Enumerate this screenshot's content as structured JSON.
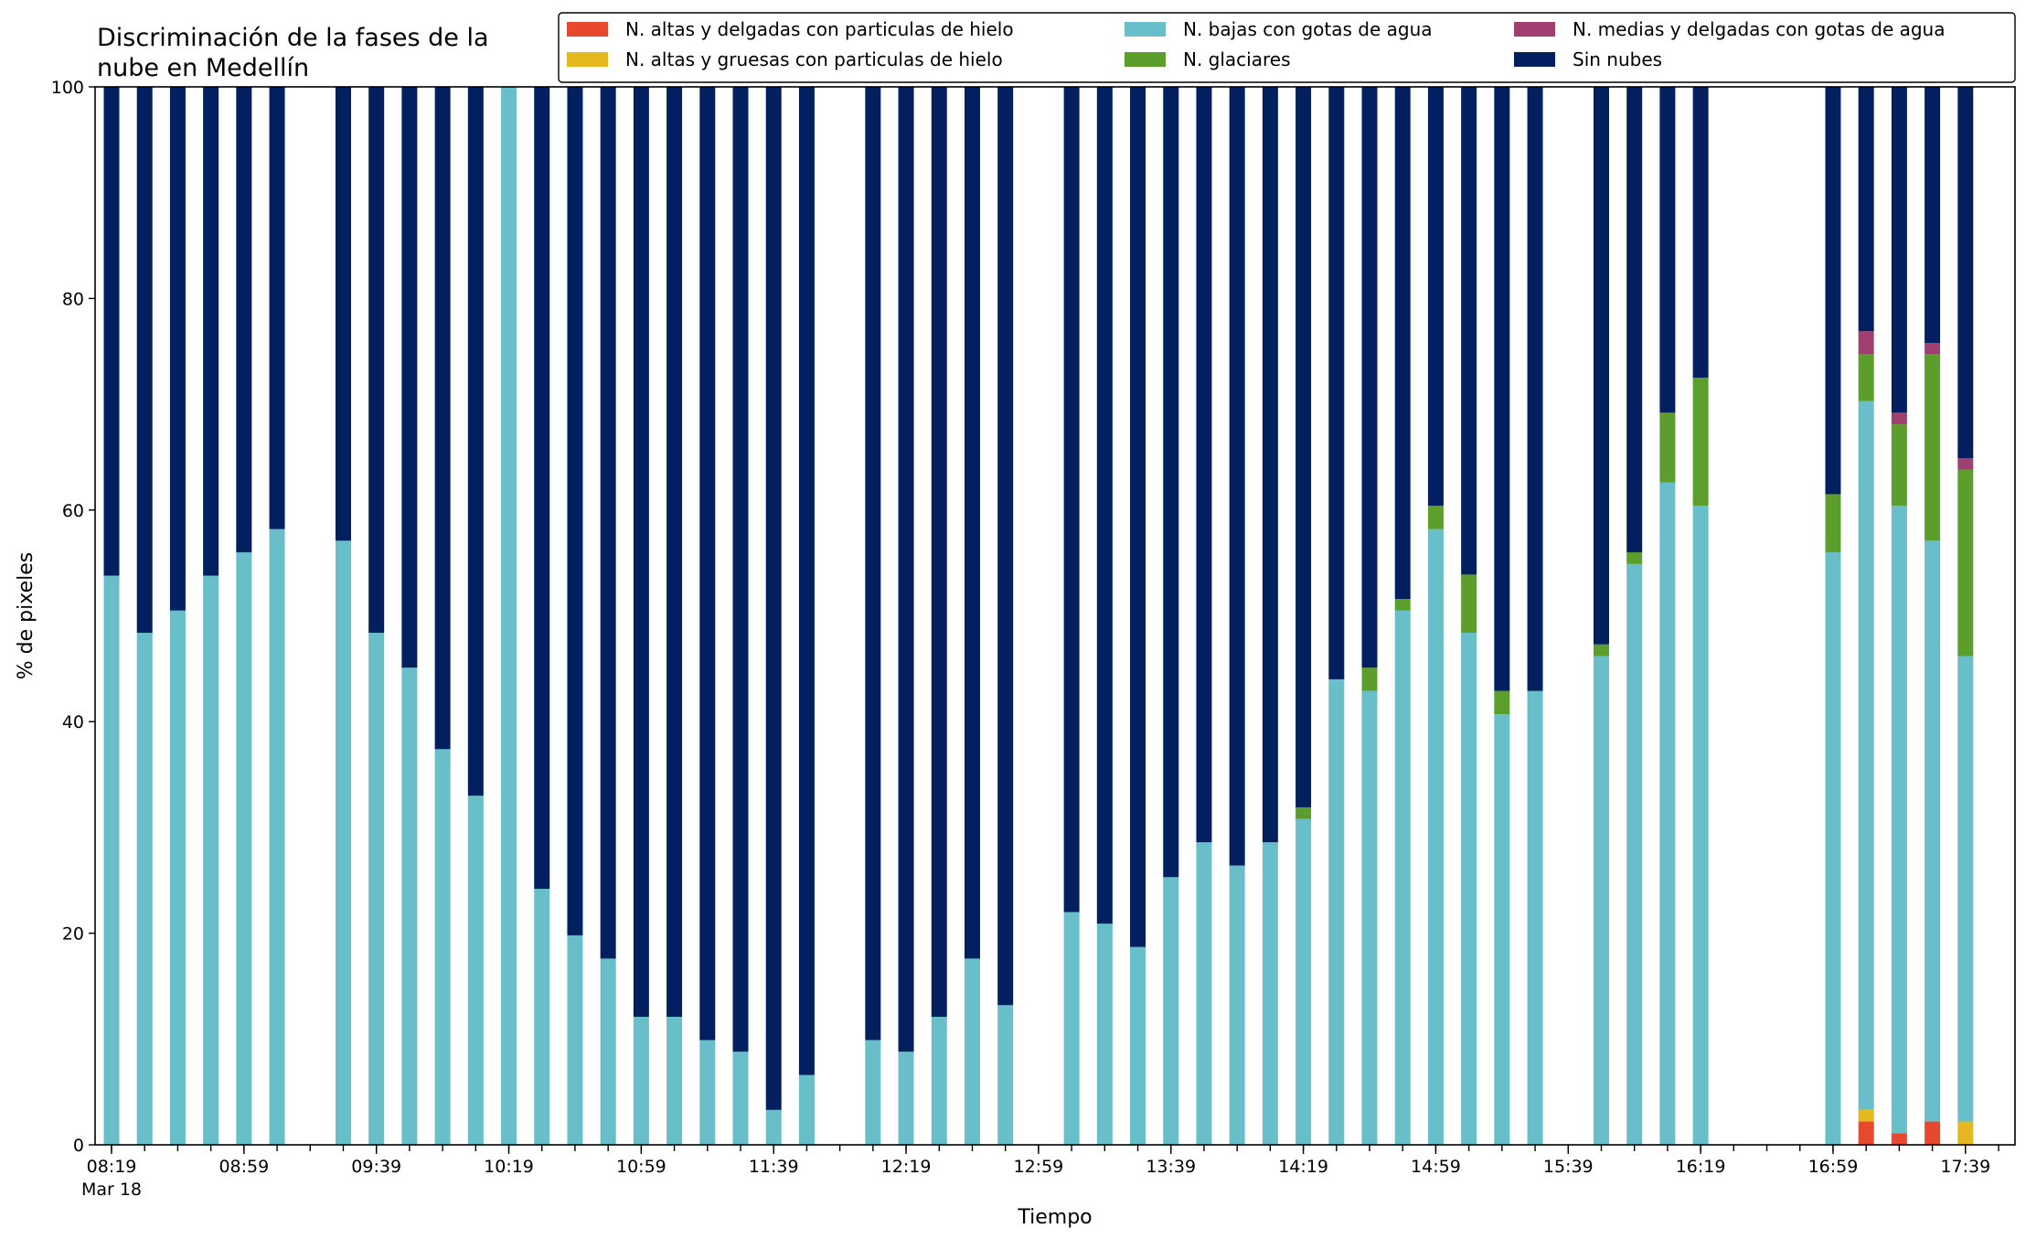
{
  "chart_data": {
    "type": "bar",
    "stacked": true,
    "title_lines": [
      "Discriminación de la fases de la",
      "nube en Medellín"
    ],
    "xlabel": "Tiempo",
    "ylabel": "% de pixeles",
    "ylim": [
      0,
      100
    ],
    "yticks": [
      0,
      20,
      40,
      60,
      80,
      100
    ],
    "x_date_label": "Mar 18",
    "x_tick_labels": [
      "08:19",
      "08:59",
      "09:39",
      "10:19",
      "10:59",
      "11:39",
      "12:19",
      "12:59",
      "13:39",
      "14:19",
      "14:59",
      "15:39",
      "16:19",
      "16:59",
      "17:39"
    ],
    "x_tick_step_minutes": 10,
    "x_time_range": [
      "08:19",
      "17:49"
    ],
    "legend_placement": "top-right",
    "legend_columns": 3,
    "x": [
      "08:19",
      "08:29",
      "08:39",
      "08:49",
      "08:59",
      "09:09",
      "09:29",
      "09:39",
      "09:49",
      "09:59",
      "10:09",
      "10:19",
      "10:29",
      "10:39",
      "10:49",
      "10:59",
      "11:09",
      "11:19",
      "11:29",
      "11:39",
      "11:49",
      "12:09",
      "12:19",
      "12:29",
      "12:39",
      "12:49",
      "13:09",
      "13:19",
      "13:29",
      "13:39",
      "13:49",
      "13:59",
      "14:09",
      "14:19",
      "14:29",
      "14:39",
      "14:49",
      "14:59",
      "15:09",
      "15:19",
      "15:29",
      "15:49",
      "15:59",
      "16:09",
      "16:19",
      "16:59",
      "17:09",
      "17:19",
      "17:29",
      "17:39"
    ],
    "series": [
      {
        "name": "N. altas y delgadas con particulas de hielo",
        "color": "#e8482e",
        "values": [
          0,
          0,
          0,
          0,
          0,
          0,
          0,
          0,
          0,
          0,
          0,
          0,
          0,
          0,
          0,
          0,
          0,
          0,
          0,
          0,
          0,
          0,
          0,
          0,
          0,
          0,
          0,
          0,
          0,
          0,
          0,
          0,
          0,
          0,
          0,
          0,
          0,
          0,
          0,
          0,
          0,
          0,
          0,
          0,
          0,
          0,
          2.2,
          1.1,
          2.2,
          0
        ]
      },
      {
        "name": "N. altas y gruesas con particulas de hielo",
        "color": "#e5b81e",
        "values": [
          0,
          0,
          0,
          0,
          0,
          0,
          0,
          0,
          0,
          0,
          0,
          0,
          0,
          0,
          0,
          0,
          0,
          0,
          0,
          0,
          0,
          0,
          0,
          0,
          0,
          0,
          0,
          0,
          0,
          0,
          0,
          0,
          0,
          0,
          0,
          0,
          0,
          0,
          0,
          0,
          0,
          0,
          0,
          0,
          0,
          0,
          1.1,
          0,
          0,
          2.2
        ]
      },
      {
        "name": "N. bajas con gotas de agua",
        "color": "#68bec9",
        "values": [
          53.8,
          48.4,
          50.5,
          53.8,
          56.0,
          58.2,
          57.1,
          48.4,
          45.1,
          37.4,
          33.0,
          100,
          24.2,
          19.8,
          17.6,
          12.1,
          12.1,
          9.9,
          8.8,
          3.3,
          6.6,
          9.9,
          8.8,
          12.1,
          17.6,
          13.2,
          22.0,
          20.9,
          18.7,
          25.3,
          28.6,
          26.4,
          28.6,
          30.8,
          44.0,
          42.9,
          50.5,
          58.2,
          48.4,
          40.7,
          42.9,
          46.2,
          54.9,
          62.6,
          60.4,
          56.0,
          67.0,
          59.3,
          54.9,
          44.0
        ]
      },
      {
        "name": "N. glaciares",
        "color": "#5c9e2c",
        "values": [
          0,
          0,
          0,
          0,
          0,
          0,
          0,
          0,
          0,
          0,
          0,
          0,
          0,
          0,
          0,
          0,
          0,
          0,
          0,
          0,
          0,
          0,
          0,
          0,
          0,
          0,
          0,
          0,
          0,
          0,
          0,
          0,
          0,
          1.1,
          0,
          2.2,
          1.1,
          2.2,
          5.5,
          2.2,
          0,
          1.1,
          1.1,
          6.6,
          12.1,
          5.5,
          4.4,
          7.7,
          17.6,
          17.6
        ]
      },
      {
        "name": "N. medias y delgadas con gotas de agua",
        "color": "#a04070",
        "values": [
          0,
          0,
          0,
          0,
          0,
          0,
          0,
          0,
          0,
          0,
          0,
          0,
          0,
          0,
          0,
          0,
          0,
          0,
          0,
          0,
          0,
          0,
          0,
          0,
          0,
          0,
          0,
          0,
          0,
          0,
          0,
          0,
          0,
          0,
          0,
          0,
          0,
          0,
          0,
          0,
          0,
          0,
          0,
          0,
          0,
          0,
          2.2,
          1.1,
          1.1,
          1.1
        ]
      },
      {
        "name": "Sin nubes",
        "color": "#021f5f",
        "values": [
          46.2,
          51.6,
          49.5,
          46.2,
          44.0,
          41.8,
          42.9,
          51.6,
          54.9,
          62.6,
          67.0,
          0,
          75.8,
          80.2,
          82.4,
          87.9,
          87.9,
          90.1,
          91.2,
          96.7,
          93.4,
          90.1,
          91.2,
          87.9,
          82.4,
          86.8,
          78.0,
          79.1,
          81.3,
          74.7,
          71.4,
          73.6,
          71.4,
          68.1,
          56.0,
          54.9,
          48.4,
          39.6,
          46.1,
          57.1,
          57.1,
          52.7,
          44.0,
          30.8,
          27.5,
          38.5,
          23.1,
          30.8,
          24.2,
          35.1
        ]
      }
    ]
  }
}
